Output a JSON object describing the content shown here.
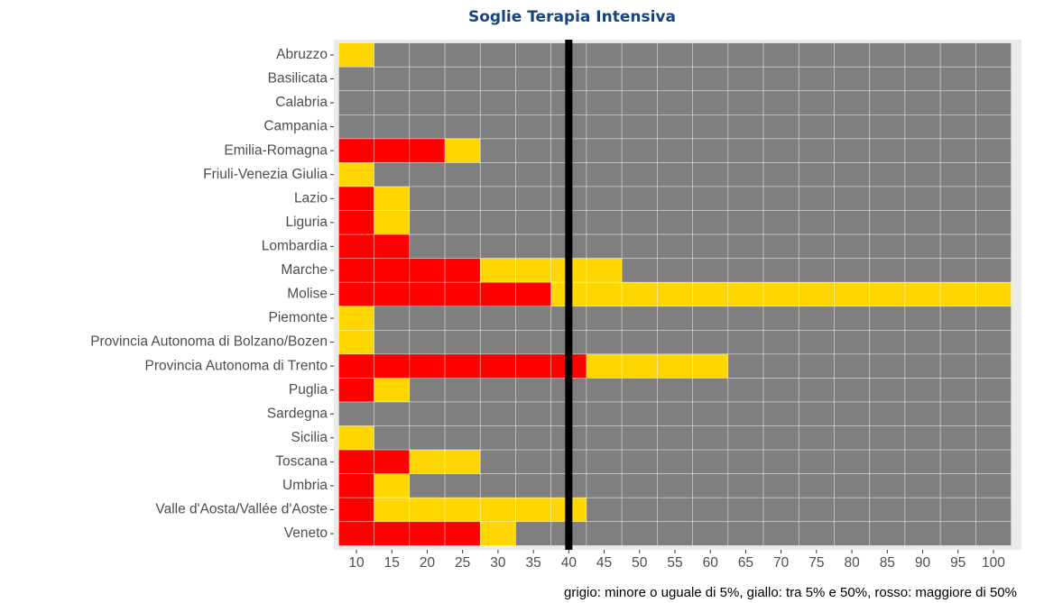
{
  "chart_data": {
    "type": "tile",
    "title": "Soglie Terapia Intensiva",
    "caption": "grigio: minore o uguale di 5%, giallo: tra 5% e 50%, rosso: maggiore di 50%",
    "level_colors": [
      "#7f7f7f",
      "#ffd700",
      "#ff0000"
    ],
    "x": [
      10,
      15,
      20,
      25,
      30,
      35,
      40,
      45,
      50,
      55,
      60,
      65,
      70,
      75,
      80,
      85,
      90,
      95,
      100
    ],
    "xlim": [
      7.5,
      102.5
    ],
    "xticks": [
      10,
      15,
      20,
      25,
      30,
      35,
      40,
      45,
      50,
      55,
      60,
      65,
      70,
      75,
      80,
      85,
      90,
      95,
      100
    ],
    "vline": 40,
    "categories": [
      "Abruzzo",
      "Basilicata",
      "Calabria",
      "Campania",
      "Emilia-Romagna",
      "Friuli-Venezia Giulia",
      "Lazio",
      "Liguria",
      "Lombardia",
      "Marche",
      "Molise",
      "Piemonte",
      "Provincia Autonoma di Bolzano/Bozen",
      "Provincia Autonoma di Trento",
      "Puglia",
      "Sardegna",
      "Sicilia",
      "Toscana",
      "Umbria",
      "Valle d'Aosta/Vallée d'Aoste",
      "Veneto"
    ],
    "values": [
      [
        1,
        0,
        0,
        0,
        0,
        0,
        0,
        0,
        0,
        0,
        0,
        0,
        0,
        0,
        0,
        0,
        0,
        0,
        0
      ],
      [
        0,
        0,
        0,
        0,
        0,
        0,
        0,
        0,
        0,
        0,
        0,
        0,
        0,
        0,
        0,
        0,
        0,
        0,
        0
      ],
      [
        0,
        0,
        0,
        0,
        0,
        0,
        0,
        0,
        0,
        0,
        0,
        0,
        0,
        0,
        0,
        0,
        0,
        0,
        0
      ],
      [
        0,
        0,
        0,
        0,
        0,
        0,
        0,
        0,
        0,
        0,
        0,
        0,
        0,
        0,
        0,
        0,
        0,
        0,
        0
      ],
      [
        2,
        2,
        2,
        1,
        0,
        0,
        0,
        0,
        0,
        0,
        0,
        0,
        0,
        0,
        0,
        0,
        0,
        0,
        0
      ],
      [
        1,
        0,
        0,
        0,
        0,
        0,
        0,
        0,
        0,
        0,
        0,
        0,
        0,
        0,
        0,
        0,
        0,
        0,
        0
      ],
      [
        2,
        1,
        0,
        0,
        0,
        0,
        0,
        0,
        0,
        0,
        0,
        0,
        0,
        0,
        0,
        0,
        0,
        0,
        0
      ],
      [
        2,
        1,
        0,
        0,
        0,
        0,
        0,
        0,
        0,
        0,
        0,
        0,
        0,
        0,
        0,
        0,
        0,
        0,
        0
      ],
      [
        2,
        2,
        0,
        0,
        0,
        0,
        0,
        0,
        0,
        0,
        0,
        0,
        0,
        0,
        0,
        0,
        0,
        0,
        0
      ],
      [
        2,
        2,
        2,
        2,
        1,
        1,
        1,
        1,
        0,
        0,
        0,
        0,
        0,
        0,
        0,
        0,
        0,
        0,
        0
      ],
      [
        2,
        2,
        2,
        2,
        2,
        2,
        1,
        1,
        1,
        1,
        1,
        1,
        1,
        1,
        1,
        1,
        1,
        1,
        1
      ],
      [
        1,
        0,
        0,
        0,
        0,
        0,
        0,
        0,
        0,
        0,
        0,
        0,
        0,
        0,
        0,
        0,
        0,
        0,
        0
      ],
      [
        1,
        0,
        0,
        0,
        0,
        0,
        0,
        0,
        0,
        0,
        0,
        0,
        0,
        0,
        0,
        0,
        0,
        0,
        0
      ],
      [
        2,
        2,
        2,
        2,
        2,
        2,
        2,
        1,
        1,
        1,
        1,
        0,
        0,
        0,
        0,
        0,
        0,
        0,
        0
      ],
      [
        2,
        1,
        0,
        0,
        0,
        0,
        0,
        0,
        0,
        0,
        0,
        0,
        0,
        0,
        0,
        0,
        0,
        0,
        0
      ],
      [
        0,
        0,
        0,
        0,
        0,
        0,
        0,
        0,
        0,
        0,
        0,
        0,
        0,
        0,
        0,
        0,
        0,
        0,
        0
      ],
      [
        1,
        0,
        0,
        0,
        0,
        0,
        0,
        0,
        0,
        0,
        0,
        0,
        0,
        0,
        0,
        0,
        0,
        0,
        0
      ],
      [
        2,
        2,
        1,
        1,
        0,
        0,
        0,
        0,
        0,
        0,
        0,
        0,
        0,
        0,
        0,
        0,
        0,
        0,
        0
      ],
      [
        2,
        1,
        0,
        0,
        0,
        0,
        0,
        0,
        0,
        0,
        0,
        0,
        0,
        0,
        0,
        0,
        0,
        0,
        0
      ],
      [
        2,
        1,
        1,
        1,
        1,
        1,
        1,
        0,
        0,
        0,
        0,
        0,
        0,
        0,
        0,
        0,
        0,
        0,
        0
      ],
      [
        2,
        2,
        2,
        2,
        1,
        0,
        0,
        0,
        0,
        0,
        0,
        0,
        0,
        0,
        0,
        0,
        0,
        0,
        0
      ]
    ]
  }
}
